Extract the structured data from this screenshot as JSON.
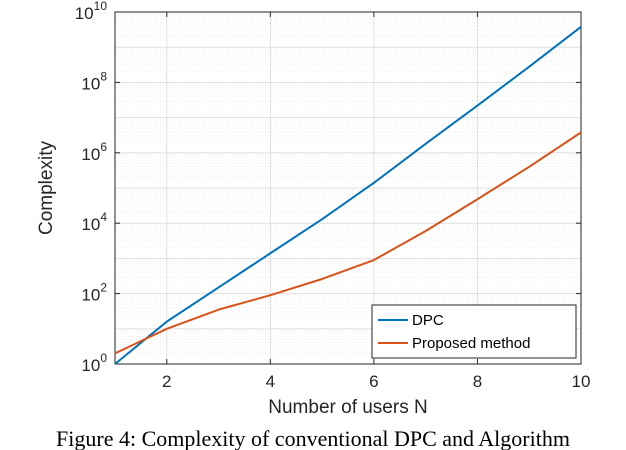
{
  "chart_data": {
    "type": "line",
    "xlabel": "Number of users N",
    "ylabel": "Complexity",
    "xlim": [
      1,
      10
    ],
    "ylim": [
      1,
      10000000000
    ],
    "yscale": "log",
    "x_ticks": [
      2,
      4,
      6,
      8,
      10
    ],
    "y_ticks": [
      {
        "base": "10",
        "exp": "0",
        "value": 1
      },
      {
        "base": "10",
        "exp": "2",
        "value": 100
      },
      {
        "base": "10",
        "exp": "4",
        "value": 10000
      },
      {
        "base": "10",
        "exp": "6",
        "value": 1000000
      },
      {
        "base": "10",
        "exp": "8",
        "value": 100000000
      },
      {
        "base": "10",
        "exp": "10",
        "value": 10000000000
      }
    ],
    "grid": true,
    "legend_position": "bottom-right",
    "series": [
      {
        "name": "DPC",
        "color": "#0072BD",
        "x": [
          1,
          2,
          3,
          4,
          5,
          6,
          7,
          8,
          9,
          10
        ],
        "y": [
          1,
          16,
          150,
          1400,
          13000,
          140000,
          1800000,
          22000000,
          280000000,
          3800000000
        ]
      },
      {
        "name": "Proposed method",
        "color": "#D95319",
        "x": [
          1,
          2,
          3,
          4,
          5,
          6,
          7,
          8,
          9,
          10
        ],
        "y": [
          2,
          10,
          35,
          90,
          260,
          900,
          6000,
          48000,
          400000,
          3800000
        ]
      }
    ]
  },
  "caption": "Figure 4: Complexity of conventional DPC and Algorithm"
}
